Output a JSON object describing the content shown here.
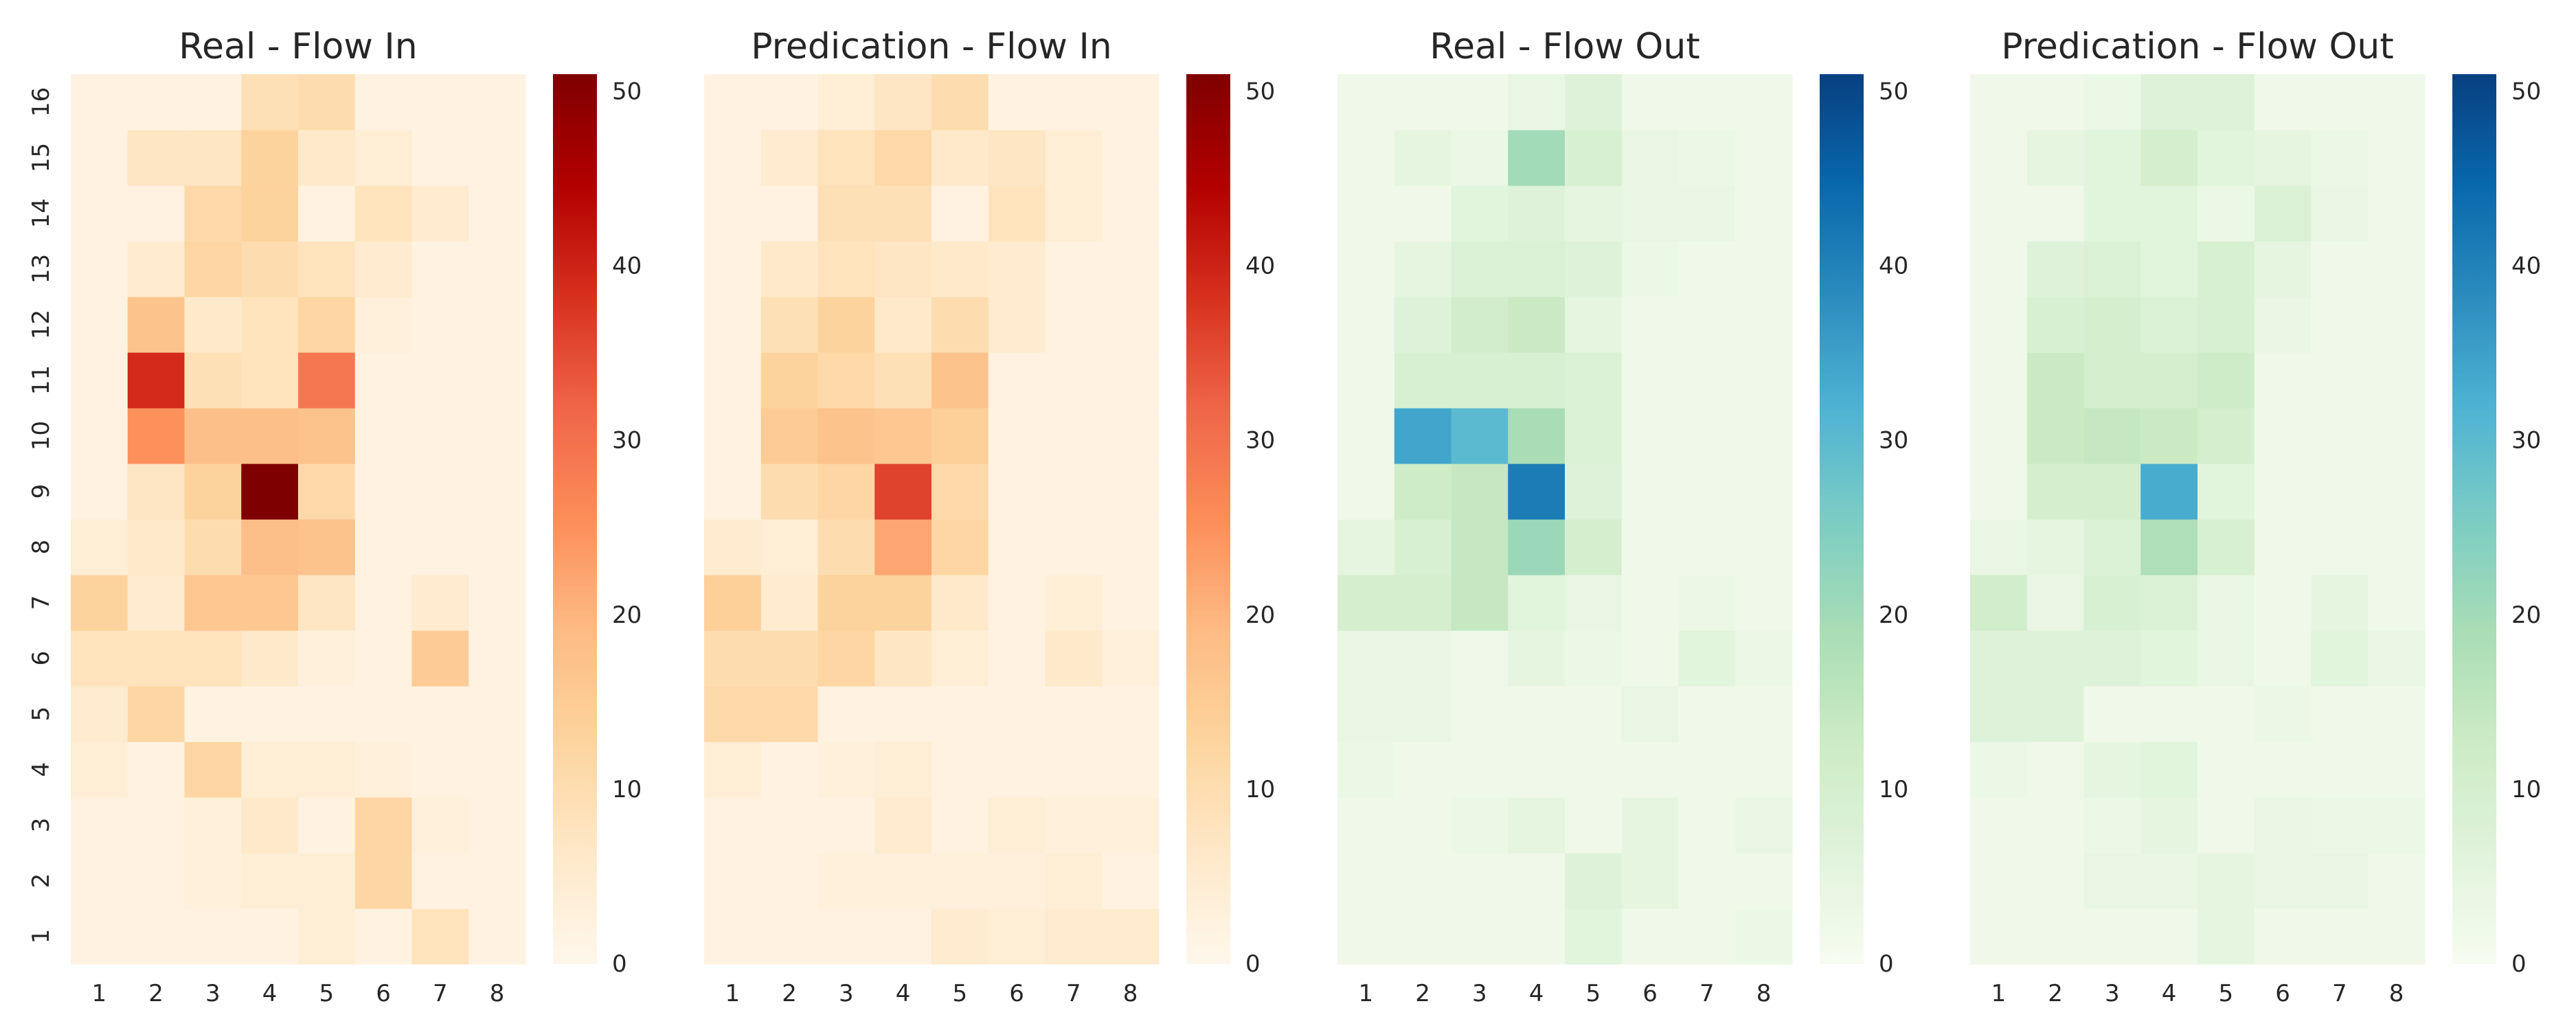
{
  "chart_data": [
    {
      "type": "heatmap",
      "title": "Real - Flow In",
      "colormap": "OrRd",
      "x_labels": [
        "1",
        "2",
        "3",
        "4",
        "5",
        "6",
        "7",
        "8"
      ],
      "y_labels": [
        "1",
        "2",
        "3",
        "4",
        "5",
        "6",
        "7",
        "8",
        "9",
        "10",
        "11",
        "12",
        "13",
        "14",
        "15",
        "16"
      ],
      "vmin": 0,
      "vmax": 51,
      "colorbar_ticks": [
        0,
        10,
        20,
        30,
        40,
        50
      ],
      "values": [
        [
          2,
          2,
          2,
          2,
          4,
          2,
          8,
          2
        ],
        [
          2,
          2,
          3,
          4,
          4,
          12,
          2,
          2
        ],
        [
          2,
          2,
          3,
          6,
          2,
          12,
          3,
          2
        ],
        [
          4,
          2,
          12,
          4,
          4,
          3,
          2,
          2
        ],
        [
          5,
          12,
          2,
          2,
          2,
          2,
          2,
          2
        ],
        [
          8,
          8,
          8,
          6,
          3,
          2,
          15,
          2
        ],
        [
          13,
          5,
          16,
          16,
          7,
          2,
          5,
          2
        ],
        [
          4,
          6,
          10,
          18,
          17,
          2,
          2,
          2
        ],
        [
          2,
          7,
          13,
          51,
          11,
          2,
          2,
          2
        ],
        [
          2,
          25,
          18,
          18,
          17,
          2,
          2,
          2
        ],
        [
          2,
          39,
          9,
          8,
          29,
          2,
          2,
          2
        ],
        [
          2,
          17,
          6,
          8,
          12,
          3,
          2,
          2
        ],
        [
          2,
          5,
          12,
          10,
          8,
          5,
          2,
          2
        ],
        [
          2,
          2,
          11,
          13,
          2,
          8,
          5,
          2
        ],
        [
          2,
          7,
          7,
          13,
          6,
          4,
          2,
          2
        ],
        [
          2,
          2,
          2,
          9,
          10,
          2,
          2,
          2
        ]
      ]
    },
    {
      "type": "heatmap",
      "title": "Predication - Flow In",
      "colormap": "OrRd",
      "x_labels": [
        "1",
        "2",
        "3",
        "4",
        "5",
        "6",
        "7",
        "8"
      ],
      "y_labels": [
        "1",
        "2",
        "3",
        "4",
        "5",
        "6",
        "7",
        "8",
        "9",
        "10",
        "11",
        "12",
        "13",
        "14",
        "15",
        "16"
      ],
      "vmin": 0,
      "vmax": 51,
      "colorbar_ticks": [
        0,
        10,
        20,
        30,
        40,
        50
      ],
      "values": [
        [
          2,
          2,
          2,
          2,
          5,
          4,
          5,
          5
        ],
        [
          2,
          2,
          3,
          3,
          3,
          3,
          4,
          2
        ],
        [
          2,
          2,
          2,
          5,
          2,
          4,
          3,
          3
        ],
        [
          4,
          2,
          3,
          4,
          2,
          2,
          2,
          2
        ],
        [
          11,
          11,
          2,
          2,
          2,
          2,
          2,
          2
        ],
        [
          10,
          10,
          12,
          7,
          4,
          2,
          6,
          3
        ],
        [
          14,
          5,
          13,
          13,
          6,
          2,
          4,
          2
        ],
        [
          5,
          4,
          10,
          22,
          12,
          2,
          2,
          2
        ],
        [
          2,
          10,
          12,
          36,
          11,
          2,
          2,
          2
        ],
        [
          2,
          15,
          17,
          16,
          14,
          2,
          2,
          2
        ],
        [
          2,
          13,
          11,
          9,
          17,
          2,
          2,
          2
        ],
        [
          2,
          9,
          13,
          6,
          10,
          5,
          2,
          2
        ],
        [
          2,
          6,
          8,
          7,
          6,
          5,
          2,
          2
        ],
        [
          2,
          2,
          9,
          9,
          2,
          8,
          4,
          2
        ],
        [
          2,
          5,
          8,
          11,
          6,
          7,
          4,
          2
        ],
        [
          2,
          2,
          4,
          7,
          10,
          2,
          2,
          2
        ]
      ]
    },
    {
      "type": "heatmap",
      "title": "Real - Flow Out",
      "colormap": "GnBu",
      "x_labels": [
        "1",
        "2",
        "3",
        "4",
        "5",
        "6",
        "7",
        "8"
      ],
      "y_labels": [
        "1",
        "2",
        "3",
        "4",
        "5",
        "6",
        "7",
        "8",
        "9",
        "10",
        "11",
        "12",
        "13",
        "14",
        "15",
        "16"
      ],
      "vmin": 0,
      "vmax": 51,
      "colorbar_ticks": [
        0,
        10,
        20,
        30,
        40,
        50
      ],
      "values": [
        [
          2,
          2,
          2,
          2,
          6,
          2,
          2,
          3
        ],
        [
          2,
          2,
          2,
          2,
          7,
          5,
          2,
          2
        ],
        [
          2,
          2,
          3,
          5,
          2,
          5,
          2,
          4
        ],
        [
          3,
          2,
          2,
          2,
          2,
          2,
          2,
          2
        ],
        [
          4,
          4,
          2,
          2,
          2,
          4,
          2,
          2
        ],
        [
          4,
          4,
          2,
          5,
          3,
          2,
          6,
          3
        ],
        [
          10,
          10,
          14,
          6,
          4,
          2,
          3,
          2
        ],
        [
          5,
          9,
          14,
          21,
          10,
          2,
          2,
          2
        ],
        [
          2,
          12,
          14,
          41,
          7,
          2,
          2,
          2
        ],
        [
          2,
          34,
          30,
          19,
          8,
          2,
          2,
          2
        ],
        [
          2,
          9,
          9,
          9,
          8,
          2,
          2,
          2
        ],
        [
          2,
          7,
          11,
          13,
          5,
          2,
          2,
          2
        ],
        [
          2,
          5,
          8,
          8,
          7,
          3,
          2,
          2
        ],
        [
          2,
          2,
          6,
          7,
          5,
          4,
          4,
          2
        ],
        [
          2,
          5,
          3,
          20,
          9,
          4,
          3,
          2
        ],
        [
          2,
          2,
          2,
          4,
          7,
          2,
          2,
          2
        ]
      ]
    },
    {
      "type": "heatmap",
      "title": "Predication - Flow Out",
      "colormap": "GnBu",
      "x_labels": [
        "1",
        "2",
        "3",
        "4",
        "5",
        "6",
        "7",
        "8"
      ],
      "y_labels": [
        "1",
        "2",
        "3",
        "4",
        "5",
        "6",
        "7",
        "8",
        "9",
        "10",
        "11",
        "12",
        "13",
        "14",
        "15",
        "16"
      ],
      "vmin": 0,
      "vmax": 51,
      "colorbar_ticks": [
        0,
        10,
        20,
        30,
        40,
        50
      ],
      "values": [
        [
          2,
          2,
          2,
          2,
          5,
          2,
          2,
          2
        ],
        [
          2,
          2,
          4,
          4,
          5,
          4,
          4,
          2
        ],
        [
          2,
          2,
          3,
          5,
          2,
          4,
          3,
          3
        ],
        [
          3,
          2,
          5,
          6,
          2,
          2,
          2,
          2
        ],
        [
          7,
          7,
          2,
          2,
          2,
          3,
          2,
          2
        ],
        [
          7,
          7,
          7,
          6,
          4,
          2,
          6,
          4
        ],
        [
          11,
          4,
          9,
          8,
          4,
          2,
          5,
          2
        ],
        [
          4,
          5,
          8,
          18,
          9,
          2,
          2,
          2
        ],
        [
          2,
          10,
          10,
          33,
          6,
          2,
          2,
          2
        ],
        [
          2,
          13,
          14,
          13,
          10,
          2,
          2,
          2
        ],
        [
          2,
          13,
          10,
          10,
          12,
          2,
          2,
          2
        ],
        [
          2,
          9,
          10,
          8,
          9,
          4,
          2,
          2
        ],
        [
          2,
          7,
          8,
          6,
          9,
          5,
          2,
          2
        ],
        [
          2,
          2,
          6,
          6,
          3,
          8,
          4,
          2
        ],
        [
          2,
          5,
          6,
          10,
          6,
          5,
          3,
          2
        ],
        [
          2,
          2,
          3,
          7,
          7,
          2,
          2,
          2
        ]
      ]
    }
  ]
}
